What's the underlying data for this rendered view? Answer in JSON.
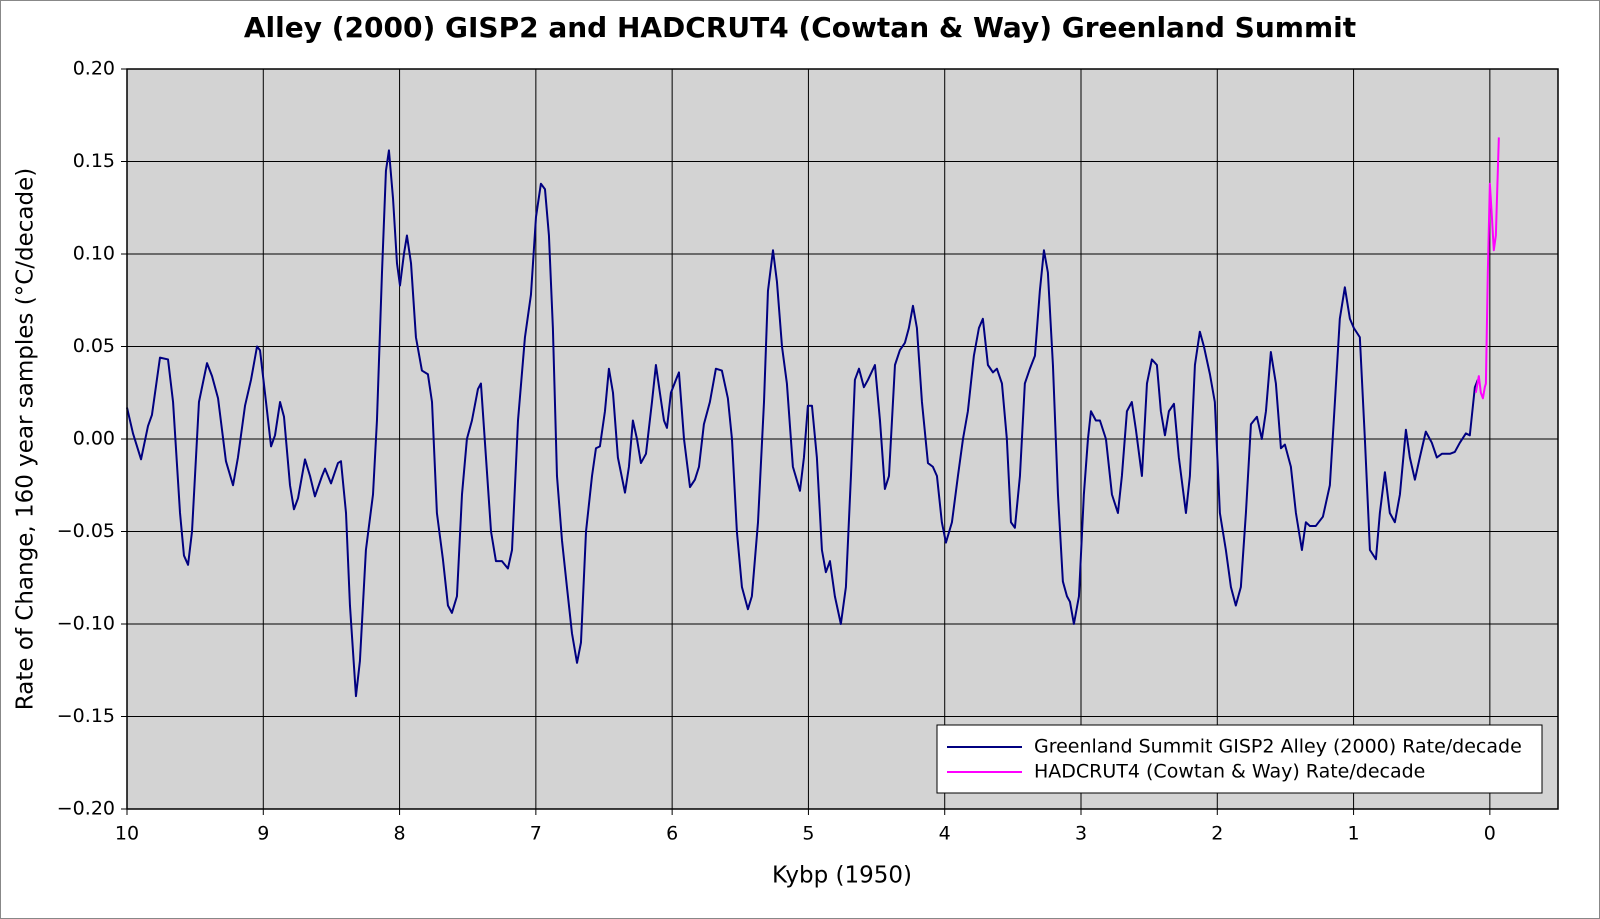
{
  "chart_data": {
    "type": "line",
    "title": "Alley (2000) GISP2 and HADCRUT4 (Cowtan & Way) Greenland Summit",
    "xlabel": "Kybp (1950)",
    "ylabel": "Rate of Change, 160 year samples (°C/decade)",
    "xlim": [
      10,
      -0.5
    ],
    "ylim": [
      -0.2,
      0.2
    ],
    "xticks": [
      10,
      9,
      8,
      7,
      6,
      5,
      4,
      3,
      2,
      1,
      0
    ],
    "yticks": [
      {
        "value": 0.2,
        "label": "0.20"
      },
      {
        "value": 0.15,
        "label": "0.15"
      },
      {
        "value": 0.1,
        "label": "0.10"
      },
      {
        "value": 0.05,
        "label": "0.05"
      },
      {
        "value": 0,
        "label": "0.00"
      },
      {
        "value": -0.05,
        "label": "−0.05"
      },
      {
        "value": -0.1,
        "label": "−0.10"
      },
      {
        "value": -0.15,
        "label": "−0.15"
      },
      {
        "value": -0.2,
        "label": "−0.20"
      }
    ],
    "grid": true,
    "legend": "lower right",
    "series": [
      {
        "name": "Greenland Summit GISP2 Alley (2000) Rate/decade",
        "color": "#000080",
        "x": [
          10.0,
          9.956,
          9.897,
          9.846,
          9.817,
          9.758,
          9.699,
          9.662,
          9.611,
          9.582,
          9.552,
          9.523,
          9.472,
          9.413,
          9.376,
          9.332,
          9.274,
          9.222,
          9.186,
          9.134,
          9.09,
          9.046,
          9.024,
          8.98,
          8.943,
          8.914,
          8.877,
          8.848,
          8.804,
          8.775,
          8.745,
          8.694,
          8.657,
          8.621,
          8.569,
          8.547,
          8.503,
          8.452,
          8.43,
          8.393,
          8.364,
          8.32,
          8.291,
          8.247,
          8.195,
          8.166,
          8.129,
          8.1,
          8.078,
          8.048,
          8.019,
          7.997,
          7.968,
          7.946,
          7.916,
          7.88,
          7.836,
          7.792,
          7.762,
          7.726,
          7.682,
          7.645,
          7.616,
          7.579,
          7.542,
          7.506,
          7.469,
          7.425,
          7.403,
          7.366,
          7.329,
          7.293,
          7.249,
          7.205,
          7.175,
          7.131,
          7.08,
          7.036,
          6.999,
          6.963,
          6.933,
          6.904,
          6.875,
          6.845,
          6.808,
          6.772,
          6.735,
          6.698,
          6.669,
          6.632,
          6.588,
          6.559,
          6.53,
          6.493,
          6.464,
          6.434,
          6.398,
          6.346,
          6.317,
          6.288,
          6.258,
          6.229,
          6.192,
          6.148,
          6.119,
          6.09,
          6.06,
          6.038,
          6.009,
          5.972,
          5.95,
          5.913,
          5.869,
          5.833,
          5.803,
          5.767,
          5.723,
          5.679,
          5.635,
          5.591,
          5.561,
          5.525,
          5.488,
          5.444,
          5.415,
          5.37,
          5.326,
          5.297,
          5.26,
          5.231,
          5.194,
          5.158,
          5.114,
          5.062,
          5.033,
          5.004,
          4.974,
          4.938,
          4.901,
          4.872,
          4.842,
          4.806,
          4.762,
          4.725,
          4.688,
          4.659,
          4.629,
          4.593,
          4.563,
          4.512,
          4.475,
          4.439,
          4.409,
          4.365,
          4.329,
          4.292,
          4.263,
          4.233,
          4.204,
          4.167,
          4.123,
          4.087,
          4.057,
          4.021,
          3.991,
          3.947,
          3.903,
          3.866,
          3.83,
          3.786,
          3.749,
          3.72,
          3.683,
          3.646,
          3.617,
          3.58,
          3.544,
          3.514,
          3.485,
          3.448,
          3.412,
          3.375,
          3.338,
          3.302,
          3.272,
          3.243,
          3.206,
          3.169,
          3.133,
          3.103,
          3.081,
          3.052,
          3.015,
          2.979,
          2.949,
          2.927,
          2.891,
          2.861,
          2.817,
          2.773,
          2.729,
          2.7,
          2.663,
          2.627,
          2.597,
          2.553,
          2.516,
          2.48,
          2.443,
          2.414,
          2.384,
          2.355,
          2.318,
          2.282,
          2.23,
          2.201,
          2.164,
          2.128,
          2.098,
          2.054,
          2.018,
          1.981,
          1.937,
          1.9,
          1.864,
          1.827,
          1.79,
          1.753,
          1.709,
          1.673,
          1.643,
          1.607,
          1.57,
          1.533,
          1.504,
          1.46,
          1.423,
          1.379,
          1.35,
          1.321,
          1.277,
          1.225,
          1.174,
          1.137,
          1.101,
          1.064,
          1.027,
          0.998,
          0.954,
          0.917,
          0.88,
          0.836,
          0.807,
          0.77,
          0.734,
          0.697,
          0.66,
          0.616,
          0.587,
          0.55,
          0.514,
          0.47,
          0.426,
          0.389,
          0.352,
          0.323,
          0.293,
          0.257,
          0.22,
          0.176,
          0.147,
          0.11,
          0.088
        ],
        "values": [
          0.017,
          0.003,
          -0.011,
          0.007,
          0.013,
          0.044,
          0.043,
          0.02,
          -0.04,
          -0.063,
          -0.068,
          -0.05,
          0.02,
          0.041,
          0.034,
          0.022,
          -0.012,
          -0.025,
          -0.01,
          0.018,
          0.032,
          0.05,
          0.048,
          0.02,
          -0.004,
          0.002,
          0.02,
          0.012,
          -0.025,
          -0.038,
          -0.032,
          -0.011,
          -0.02,
          -0.031,
          -0.02,
          -0.016,
          -0.024,
          -0.013,
          -0.012,
          -0.04,
          -0.09,
          -0.139,
          -0.12,
          -0.06,
          -0.03,
          0.01,
          0.09,
          0.145,
          0.156,
          0.13,
          0.095,
          0.083,
          0.1,
          0.11,
          0.095,
          0.055,
          0.037,
          0.035,
          0.02,
          -0.04,
          -0.065,
          -0.09,
          -0.094,
          -0.085,
          -0.03,
          0,
          0.01,
          0.027,
          0.03,
          -0.01,
          -0.05,
          -0.066,
          -0.066,
          -0.07,
          -0.06,
          0.01,
          0.055,
          0.078,
          0.12,
          0.138,
          0.135,
          0.11,
          0.06,
          -0.02,
          -0.055,
          -0.08,
          -0.105,
          -0.121,
          -0.11,
          -0.05,
          -0.02,
          -0.005,
          -0.004,
          0.015,
          0.038,
          0.025,
          -0.01,
          -0.029,
          -0.015,
          0.01,
          0,
          -0.013,
          -0.008,
          0.02,
          0.04,
          0.025,
          0.01,
          0.006,
          0.025,
          0.032,
          0.036,
          0,
          -0.026,
          -0.022,
          -0.015,
          0.008,
          0.02,
          0.038,
          0.037,
          0.022,
          0,
          -0.05,
          -0.08,
          -0.092,
          -0.085,
          -0.045,
          0.02,
          0.08,
          0.102,
          0.085,
          0.05,
          0.03,
          -0.015,
          -0.028,
          -0.01,
          0.018,
          0.018,
          -0.01,
          -0.06,
          -0.072,
          -0.066,
          -0.085,
          -0.1,
          -0.08,
          -0.02,
          0.032,
          0.038,
          0.028,
          0.032,
          0.04,
          0.01,
          -0.027,
          -0.02,
          0.04,
          0.048,
          0.052,
          0.06,
          0.072,
          0.06,
          0.02,
          -0.013,
          -0.015,
          -0.02,
          -0.045,
          -0.056,
          -0.045,
          -0.02,
          0,
          0.015,
          0.045,
          0.06,
          0.065,
          0.04,
          0.036,
          0.038,
          0.03,
          0,
          -0.045,
          -0.048,
          -0.02,
          0.03,
          0.038,
          0.045,
          0.08,
          0.102,
          0.09,
          0.04,
          -0.03,
          -0.077,
          -0.085,
          -0.088,
          -0.1,
          -0.085,
          -0.03,
          0,
          0.015,
          0.01,
          0.01,
          0,
          -0.03,
          -0.04,
          -0.02,
          0.015,
          0.02,
          0.005,
          -0.02,
          0.03,
          0.043,
          0.04,
          0.015,
          0.002,
          0.015,
          0.019,
          -0.01,
          -0.04,
          -0.02,
          0.04,
          0.058,
          0.05,
          0.035,
          0.02,
          -0.04,
          -0.06,
          -0.08,
          -0.09,
          -0.08,
          -0.04,
          0.008,
          0.012,
          0,
          0.015,
          0.047,
          0.03,
          -0.005,
          -0.003,
          -0.015,
          -0.04,
          -0.06,
          -0.045,
          -0.047,
          -0.047,
          -0.042,
          -0.025,
          0.02,
          0.065,
          0.082,
          0.065,
          0.06,
          0.055,
          0,
          -0.06,
          -0.065,
          -0.04,
          -0.018,
          -0.04,
          -0.045,
          -0.03,
          0.005,
          -0.01,
          -0.022,
          -0.01,
          0.004,
          -0.002,
          -0.01,
          -0.008,
          -0.008,
          -0.008,
          -0.007,
          -0.002,
          0.003,
          0.002,
          0.028,
          0.032
        ]
      },
      {
        "name": "HADCRUT4 (Cowtan & Way) Rate/decade",
        "color": "#ff00ff",
        "x": [
          0.103,
          0.081,
          0.066,
          0.051,
          0.037,
          0.029,
          0.015,
          0,
          -0.015,
          -0.029,
          -0.044,
          -0.066
        ],
        "values": [
          0.025,
          0.034,
          0.025,
          0.022,
          0.028,
          0.03,
          0.09,
          0.138,
          0.12,
          0.102,
          0.11,
          0.163
        ]
      }
    ]
  }
}
